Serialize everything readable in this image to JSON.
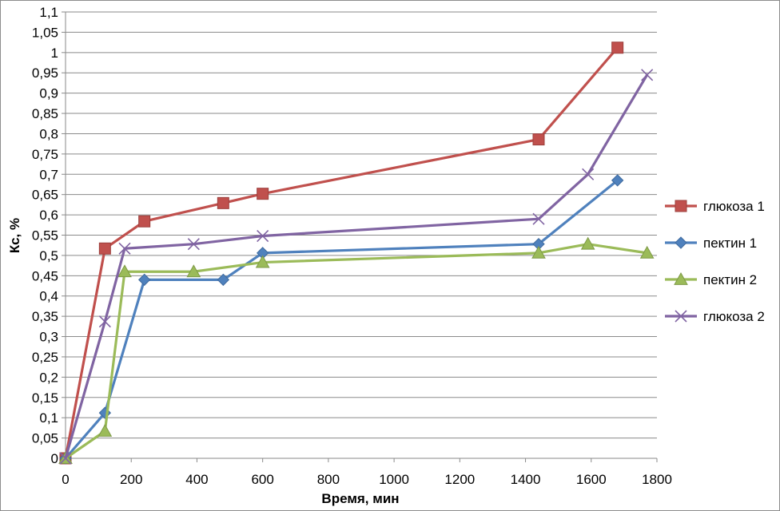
{
  "chart_data": {
    "type": "line",
    "xlabel": "Время, мин",
    "ylabel": "Кс, %",
    "xlim": [
      0,
      1800
    ],
    "ylim": [
      0,
      1.1
    ],
    "x_ticks": [
      "0",
      "200",
      "400",
      "600",
      "800",
      "1000",
      "1200",
      "1400",
      "1600",
      "1800"
    ],
    "y_ticks": [
      "0",
      "0,05",
      "0,1",
      "0,15",
      "0,2",
      "0,25",
      "0,3",
      "0,35",
      "0,4",
      "0,45",
      "0,5",
      "0,55",
      "0,6",
      "0,65",
      "0,7",
      "0,75",
      "0,8",
      "0,85",
      "0,9",
      "0,95",
      "1",
      "1,05",
      "1,1"
    ],
    "grid": "horizontal",
    "legend_position": "right",
    "series": [
      {
        "name": "глюкоза 1",
        "color": "#C0504D",
        "marker": "square",
        "x": [
          0,
          120,
          240,
          480,
          600,
          1440,
          1680
        ],
        "y": [
          0,
          0.517,
          0.584,
          0.629,
          0.652,
          0.786,
          1.012
        ]
      },
      {
        "name": "пектин 1",
        "color": "#4F81BD",
        "marker": "diamond",
        "x": [
          0,
          120,
          240,
          480,
          600,
          1440,
          1680
        ],
        "y": [
          0,
          0.112,
          0.44,
          0.44,
          0.506,
          0.528,
          0.685
        ]
      },
      {
        "name": "пектин 2",
        "color": "#9BBB59",
        "marker": "triangle",
        "x": [
          0,
          120,
          180,
          390,
          600,
          1440,
          1590,
          1770
        ],
        "y": [
          0,
          0.067,
          0.46,
          0.46,
          0.483,
          0.506,
          0.528,
          0.506
        ]
      },
      {
        "name": "глюкоза 2",
        "color": "#8064A2",
        "marker": "x",
        "x": [
          0,
          120,
          180,
          390,
          600,
          1440,
          1590,
          1770
        ],
        "y": [
          0,
          0.337,
          0.517,
          0.528,
          0.548,
          0.59,
          0.7,
          0.945
        ]
      }
    ]
  }
}
